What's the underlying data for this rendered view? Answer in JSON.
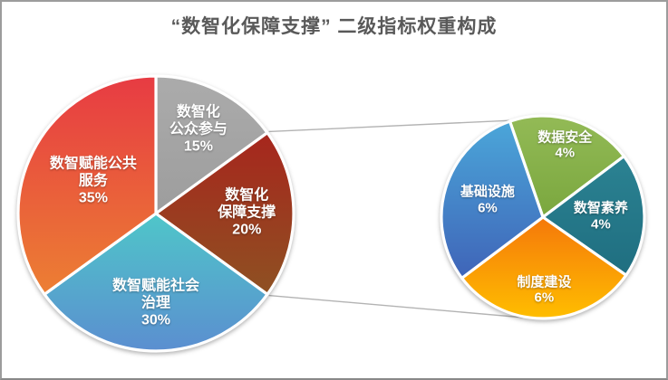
{
  "chart_data": {
    "type": "pie",
    "title": "“数智化保障支撑” 二级指标权重构成",
    "layout_hint": "bar-of-pie: the small right pie breaks down the 数智化保障支撑 20% slice of the big left pie; two gray connector lines link the slice to the small pie; legend off; labels inside slices",
    "connector_color": "#b3b3b3",
    "title_color": "#595959",
    "label_text_color": "#ffffff",
    "pies": [
      {
        "name": "main-pie",
        "start_angle_deg": 0,
        "slices": [
          {
            "label": "数智化公众参与",
            "value": 15,
            "pct": "15%",
            "lines": [
              "数智化",
              "公众参与",
              "15%"
            ],
            "color_top": "#ababab",
            "color_bottom": "#9d9d9d"
          },
          {
            "label": "数智化保障支撑",
            "value": 20,
            "pct": "20%",
            "lines": [
              "数智化",
              "保障支撑",
              "20%"
            ],
            "color_top": "#a7261d",
            "color_bottom": "#8e5122"
          },
          {
            "label": "数智赋能社会治理",
            "value": 30,
            "pct": "30%",
            "lines": [
              "数智赋能社会",
              "治理",
              "30%"
            ],
            "color_top": "#4fc6c9",
            "color_bottom": "#5b8ed0"
          },
          {
            "label": "数智赋能公共服务",
            "value": 35,
            "pct": "35%",
            "lines": [
              "数智赋能公共",
              "服务",
              "35%"
            ],
            "color_top": "#e73b43",
            "color_bottom": "#ec7f33"
          }
        ]
      },
      {
        "name": "breakdown-pie",
        "parent_slice": "数智化保障支撑",
        "start_angle_deg": -19,
        "slices": [
          {
            "label": "数据安全",
            "value": 4,
            "pct": "4%",
            "lines": [
              "数据安全",
              "4%"
            ],
            "color_top": "#93ba56",
            "color_bottom": "#7aa73e"
          },
          {
            "label": "数智素养",
            "value": 4,
            "pct": "4%",
            "lines": [
              "数智素养",
              "4%"
            ],
            "color_top": "#2b8292",
            "color_bottom": "#1f6e80"
          },
          {
            "label": "制度建设",
            "value": 6,
            "pct": "6%",
            "lines": [
              "制度建设",
              "6%"
            ],
            "color_top": "#f5780a",
            "color_bottom": "#ffbe00"
          },
          {
            "label": "基础设施",
            "value": 6,
            "pct": "6%",
            "lines": [
              "基础设施",
              "6%"
            ],
            "color_top": "#4ba6d9",
            "color_bottom": "#3f64b8"
          }
        ]
      }
    ]
  }
}
